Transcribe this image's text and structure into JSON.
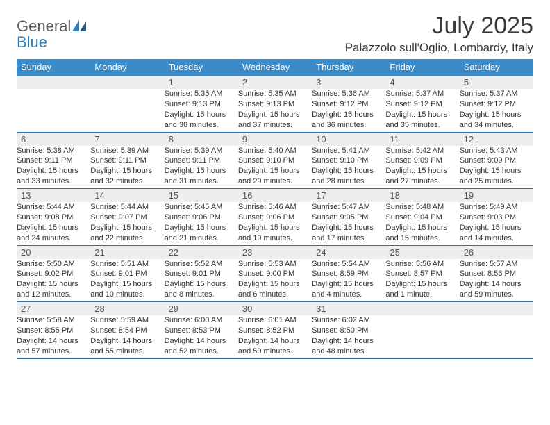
{
  "logo": {
    "text1": "General",
    "text2": "Blue"
  },
  "title": "July 2025",
  "location": "Palazzolo sull'Oglio, Lombardy, Italy",
  "colors": {
    "header_bg": "#3b8bc9",
    "header_text": "#ffffff",
    "daynum_bg": "#eeeeee",
    "rule": "#2a6fa8",
    "text": "#333333",
    "logo_gray": "#5a5a5a",
    "logo_blue": "#2a7fbf"
  },
  "day_labels": [
    "Sunday",
    "Monday",
    "Tuesday",
    "Wednesday",
    "Thursday",
    "Friday",
    "Saturday"
  ],
  "weeks": [
    [
      {
        "n": "",
        "sr": "",
        "ss": "",
        "dl": ""
      },
      {
        "n": "",
        "sr": "",
        "ss": "",
        "dl": ""
      },
      {
        "n": "1",
        "sr": "Sunrise: 5:35 AM",
        "ss": "Sunset: 9:13 PM",
        "dl": "Daylight: 15 hours and 38 minutes."
      },
      {
        "n": "2",
        "sr": "Sunrise: 5:35 AM",
        "ss": "Sunset: 9:13 PM",
        "dl": "Daylight: 15 hours and 37 minutes."
      },
      {
        "n": "3",
        "sr": "Sunrise: 5:36 AM",
        "ss": "Sunset: 9:12 PM",
        "dl": "Daylight: 15 hours and 36 minutes."
      },
      {
        "n": "4",
        "sr": "Sunrise: 5:37 AM",
        "ss": "Sunset: 9:12 PM",
        "dl": "Daylight: 15 hours and 35 minutes."
      },
      {
        "n": "5",
        "sr": "Sunrise: 5:37 AM",
        "ss": "Sunset: 9:12 PM",
        "dl": "Daylight: 15 hours and 34 minutes."
      }
    ],
    [
      {
        "n": "6",
        "sr": "Sunrise: 5:38 AM",
        "ss": "Sunset: 9:11 PM",
        "dl": "Daylight: 15 hours and 33 minutes."
      },
      {
        "n": "7",
        "sr": "Sunrise: 5:39 AM",
        "ss": "Sunset: 9:11 PM",
        "dl": "Daylight: 15 hours and 32 minutes."
      },
      {
        "n": "8",
        "sr": "Sunrise: 5:39 AM",
        "ss": "Sunset: 9:11 PM",
        "dl": "Daylight: 15 hours and 31 minutes."
      },
      {
        "n": "9",
        "sr": "Sunrise: 5:40 AM",
        "ss": "Sunset: 9:10 PM",
        "dl": "Daylight: 15 hours and 29 minutes."
      },
      {
        "n": "10",
        "sr": "Sunrise: 5:41 AM",
        "ss": "Sunset: 9:10 PM",
        "dl": "Daylight: 15 hours and 28 minutes."
      },
      {
        "n": "11",
        "sr": "Sunrise: 5:42 AM",
        "ss": "Sunset: 9:09 PM",
        "dl": "Daylight: 15 hours and 27 minutes."
      },
      {
        "n": "12",
        "sr": "Sunrise: 5:43 AM",
        "ss": "Sunset: 9:09 PM",
        "dl": "Daylight: 15 hours and 25 minutes."
      }
    ],
    [
      {
        "n": "13",
        "sr": "Sunrise: 5:44 AM",
        "ss": "Sunset: 9:08 PM",
        "dl": "Daylight: 15 hours and 24 minutes."
      },
      {
        "n": "14",
        "sr": "Sunrise: 5:44 AM",
        "ss": "Sunset: 9:07 PM",
        "dl": "Daylight: 15 hours and 22 minutes."
      },
      {
        "n": "15",
        "sr": "Sunrise: 5:45 AM",
        "ss": "Sunset: 9:06 PM",
        "dl": "Daylight: 15 hours and 21 minutes."
      },
      {
        "n": "16",
        "sr": "Sunrise: 5:46 AM",
        "ss": "Sunset: 9:06 PM",
        "dl": "Daylight: 15 hours and 19 minutes."
      },
      {
        "n": "17",
        "sr": "Sunrise: 5:47 AM",
        "ss": "Sunset: 9:05 PM",
        "dl": "Daylight: 15 hours and 17 minutes."
      },
      {
        "n": "18",
        "sr": "Sunrise: 5:48 AM",
        "ss": "Sunset: 9:04 PM",
        "dl": "Daylight: 15 hours and 15 minutes."
      },
      {
        "n": "19",
        "sr": "Sunrise: 5:49 AM",
        "ss": "Sunset: 9:03 PM",
        "dl": "Daylight: 15 hours and 14 minutes."
      }
    ],
    [
      {
        "n": "20",
        "sr": "Sunrise: 5:50 AM",
        "ss": "Sunset: 9:02 PM",
        "dl": "Daylight: 15 hours and 12 minutes."
      },
      {
        "n": "21",
        "sr": "Sunrise: 5:51 AM",
        "ss": "Sunset: 9:01 PM",
        "dl": "Daylight: 15 hours and 10 minutes."
      },
      {
        "n": "22",
        "sr": "Sunrise: 5:52 AM",
        "ss": "Sunset: 9:01 PM",
        "dl": "Daylight: 15 hours and 8 minutes."
      },
      {
        "n": "23",
        "sr": "Sunrise: 5:53 AM",
        "ss": "Sunset: 9:00 PM",
        "dl": "Daylight: 15 hours and 6 minutes."
      },
      {
        "n": "24",
        "sr": "Sunrise: 5:54 AM",
        "ss": "Sunset: 8:59 PM",
        "dl": "Daylight: 15 hours and 4 minutes."
      },
      {
        "n": "25",
        "sr": "Sunrise: 5:56 AM",
        "ss": "Sunset: 8:57 PM",
        "dl": "Daylight: 15 hours and 1 minute."
      },
      {
        "n": "26",
        "sr": "Sunrise: 5:57 AM",
        "ss": "Sunset: 8:56 PM",
        "dl": "Daylight: 14 hours and 59 minutes."
      }
    ],
    [
      {
        "n": "27",
        "sr": "Sunrise: 5:58 AM",
        "ss": "Sunset: 8:55 PM",
        "dl": "Daylight: 14 hours and 57 minutes."
      },
      {
        "n": "28",
        "sr": "Sunrise: 5:59 AM",
        "ss": "Sunset: 8:54 PM",
        "dl": "Daylight: 14 hours and 55 minutes."
      },
      {
        "n": "29",
        "sr": "Sunrise: 6:00 AM",
        "ss": "Sunset: 8:53 PM",
        "dl": "Daylight: 14 hours and 52 minutes."
      },
      {
        "n": "30",
        "sr": "Sunrise: 6:01 AM",
        "ss": "Sunset: 8:52 PM",
        "dl": "Daylight: 14 hours and 50 minutes."
      },
      {
        "n": "31",
        "sr": "Sunrise: 6:02 AM",
        "ss": "Sunset: 8:50 PM",
        "dl": "Daylight: 14 hours and 48 minutes."
      },
      {
        "n": "",
        "sr": "",
        "ss": "",
        "dl": ""
      },
      {
        "n": "",
        "sr": "",
        "ss": "",
        "dl": ""
      }
    ]
  ]
}
